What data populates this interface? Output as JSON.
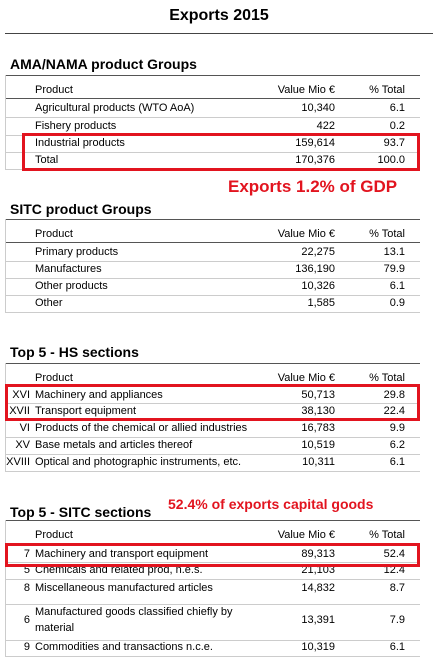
{
  "title": "Exports 2015",
  "sections": [
    {
      "title": "AMA/NAMA product Groups",
      "header": [
        "Product",
        "Value Mio €",
        "% Total"
      ],
      "rows": [
        {
          "product": "Agricultural products (WTO AoA)",
          "value": "10,340",
          "pct": "6.1"
        },
        {
          "product": "Fishery products",
          "value": "422",
          "pct": "0.2"
        },
        {
          "product": "Industrial products",
          "value": "159,614",
          "pct": "93.7"
        },
        {
          "product": "Total",
          "value": "170,376",
          "pct": "100.0"
        }
      ]
    },
    {
      "title": "SITC product Groups",
      "header": [
        "Product",
        "Value Mio €",
        "% Total"
      ],
      "rows": [
        {
          "product": "Primary products",
          "value": "22,275",
          "pct": "13.1"
        },
        {
          "product": "Manufactures",
          "value": "136,190",
          "pct": "79.9"
        },
        {
          "product": "Other products",
          "value": "10,326",
          "pct": "6.1"
        },
        {
          "product": "Other",
          "value": "1,585",
          "pct": "0.9"
        }
      ]
    },
    {
      "title": "Top 5  - HS sections",
      "header": [
        "Product",
        "Value Mio €",
        "% Total"
      ],
      "rows": [
        {
          "code": "XVI",
          "product": "Machinery and appliances",
          "value": "50,713",
          "pct": "29.8"
        },
        {
          "code": "XVII",
          "product": "Transport equipment",
          "value": "38,130",
          "pct": "22.4"
        },
        {
          "code": "VI",
          "product": "Products of the chemical or allied industries",
          "value": "16,783",
          "pct": "9.9"
        },
        {
          "code": "XV",
          "product": "Base metals and articles thereof",
          "value": "10,519",
          "pct": "6.2"
        },
        {
          "code": "XVIII",
          "product": "Optical and photographic instruments, etc.",
          "value": "10,311",
          "pct": "6.1"
        }
      ]
    },
    {
      "title": "Top 5  - SITC sections",
      "header": [
        "Product",
        "Value Mio €",
        "% Total"
      ],
      "rows": [
        {
          "code": "7",
          "product": "Machinery and transport equipment",
          "value": "89,313",
          "pct": "52.4"
        },
        {
          "code": "5",
          "product": "Chemicals and related prod, n.e.s.",
          "value": "21,103",
          "pct": "12.4"
        },
        {
          "code": "8",
          "product": "Miscellaneous manufactured articles",
          "value": "14,832",
          "pct": "8.7"
        },
        {
          "code": "6",
          "product": "Manufactured goods classified chiefly by material",
          "value": "13,391",
          "pct": "7.9"
        },
        {
          "code": "9",
          "product": "Commodities and transactions n.c.e.",
          "value": "10,319",
          "pct": "6.1"
        }
      ]
    }
  ],
  "annotations": [
    "Exports 1.2% of GDP",
    "52.4% of exports capital goods"
  ]
}
